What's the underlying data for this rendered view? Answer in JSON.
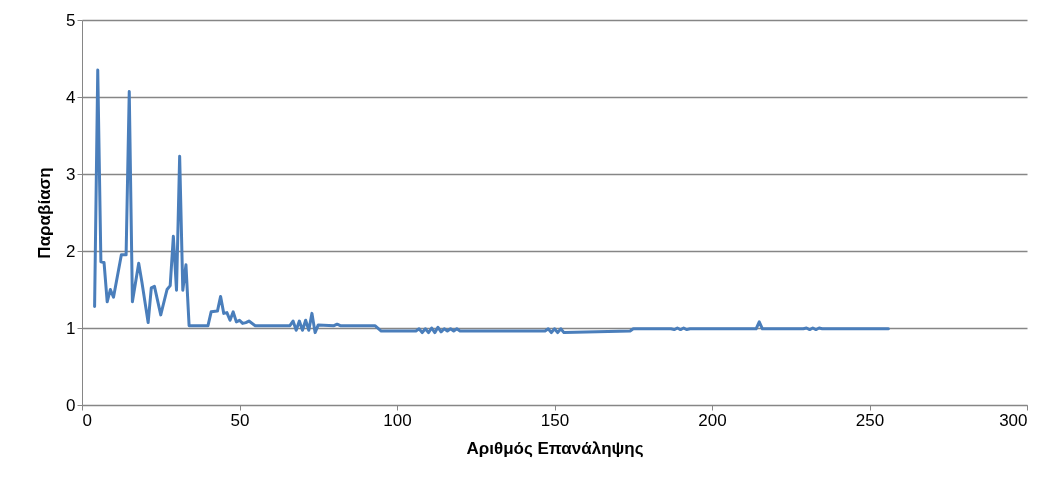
{
  "chart_data": {
    "type": "line",
    "xlabel": "Αριθμός Επανάληψης",
    "ylabel": "Παραβίαση",
    "xlim": [
      0,
      300
    ],
    "xticks": [
      0,
      50,
      100,
      150,
      200,
      250,
      300
    ],
    "ylim": [
      0,
      5
    ],
    "yticks": [
      0,
      1,
      2,
      3,
      4,
      5
    ],
    "grid": "y",
    "marker": "none",
    "line_style": "solid",
    "series": [
      {
        "color": "#4a7ebb",
        "x": [
          4,
          5,
          6,
          7,
          8,
          9,
          10,
          12.5,
          14,
          15,
          16,
          18,
          19,
          21,
          22,
          23,
          25,
          27,
          28,
          29,
          30,
          31,
          32,
          33,
          34,
          40,
          41,
          43,
          44,
          45,
          46,
          47,
          48,
          49,
          50,
          51,
          52,
          53,
          55,
          66,
          67,
          68,
          69,
          70,
          71,
          72,
          73,
          74,
          75,
          80,
          81,
          82,
          93,
          95,
          106,
          107,
          108,
          109,
          110,
          111,
          112,
          113,
          114,
          115,
          116,
          117,
          118,
          119,
          120,
          121,
          147,
          148,
          149,
          150,
          151,
          152,
          153,
          174,
          175,
          187,
          188,
          189,
          190,
          191,
          192,
          193,
          214,
          215,
          216,
          229,
          230,
          231,
          232,
          233,
          234,
          235,
          256
        ],
        "values": [
          1.28,
          4.35,
          1.86,
          1.85,
          1.34,
          1.5,
          1.4,
          1.95,
          1.95,
          4.07,
          1.34,
          1.84,
          1.6,
          1.07,
          1.52,
          1.54,
          1.17,
          1.5,
          1.55,
          2.19,
          1.49,
          3.23,
          1.49,
          1.82,
          1.03,
          1.03,
          1.21,
          1.22,
          1.41,
          1.19,
          1.2,
          1.1,
          1.21,
          1.08,
          1.1,
          1.06,
          1.07,
          1.09,
          1.03,
          1.03,
          1.09,
          0.97,
          1.09,
          0.97,
          1.1,
          0.97,
          1.19,
          0.94,
          1.04,
          1.03,
          1.05,
          1.03,
          1.03,
          0.96,
          0.96,
          0.99,
          0.94,
          0.99,
          0.94,
          1.0,
          0.94,
          1.01,
          0.95,
          0.99,
          0.96,
          0.99,
          0.96,
          0.99,
          0.96,
          0.96,
          0.96,
          0.99,
          0.94,
          0.99,
          0.94,
          0.99,
          0.94,
          0.96,
          0.99,
          0.99,
          0.98,
          1.0,
          0.98,
          1.0,
          0.98,
          0.99,
          0.99,
          1.08,
          0.99,
          0.99,
          1.0,
          0.98,
          1.0,
          0.98,
          1.0,
          0.99,
          0.99
        ]
      }
    ]
  }
}
